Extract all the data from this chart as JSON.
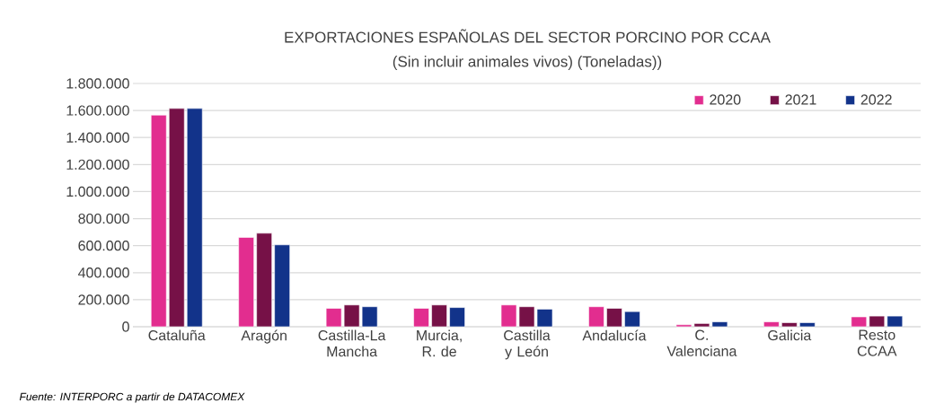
{
  "chart_data": {
    "type": "bar",
    "title": "EXPORTACIONES ESPAÑOLAS DEL SECTOR PORCINO POR CCAA",
    "subtitle": "(Sin incluir animales vivos) (Toneladas))",
    "categories": [
      "Cataluña",
      "Aragón",
      "Castilla-La Mancha",
      "Murcia, R. de",
      "Castilla y León",
      "Andalucía",
      "C. Valenciana",
      "Galicia",
      "Resto CCAA"
    ],
    "series": [
      {
        "name": "2020",
        "color": "#e22d8f",
        "values": [
          1566000,
          661000,
          136000,
          136000,
          161000,
          148000,
          15000,
          36000,
          73000
        ]
      },
      {
        "name": "2021",
        "color": "#761147",
        "values": [
          1615000,
          692000,
          161000,
          161000,
          148000,
          136000,
          24000,
          30000,
          79000
        ]
      },
      {
        "name": "2022",
        "color": "#12338a",
        "values": [
          1615000,
          606000,
          148000,
          142000,
          130000,
          112000,
          36000,
          30000,
          79000
        ]
      }
    ],
    "ylim": [
      0,
      1800000
    ],
    "yticks": [
      {
        "value": 0,
        "label": "0"
      },
      {
        "value": 200000,
        "label": "200.000"
      },
      {
        "value": 400000,
        "label": "400.000"
      },
      {
        "value": 600000,
        "label": "600.000"
      },
      {
        "value": 800000,
        "label": "800.000"
      },
      {
        "value": 1000000,
        "label": "1.000.000"
      },
      {
        "value": 1200000,
        "label": "1.200.000"
      },
      {
        "value": 1400000,
        "label": "1.400.000"
      },
      {
        "value": 1600000,
        "label": "1.600.000"
      },
      {
        "value": 1800000,
        "label": "1.800.000"
      }
    ],
    "grid": "y",
    "legend": "top right",
    "annotations": [
      "Fuente: INTERPORC  a partir de DATACOMEX"
    ]
  }
}
